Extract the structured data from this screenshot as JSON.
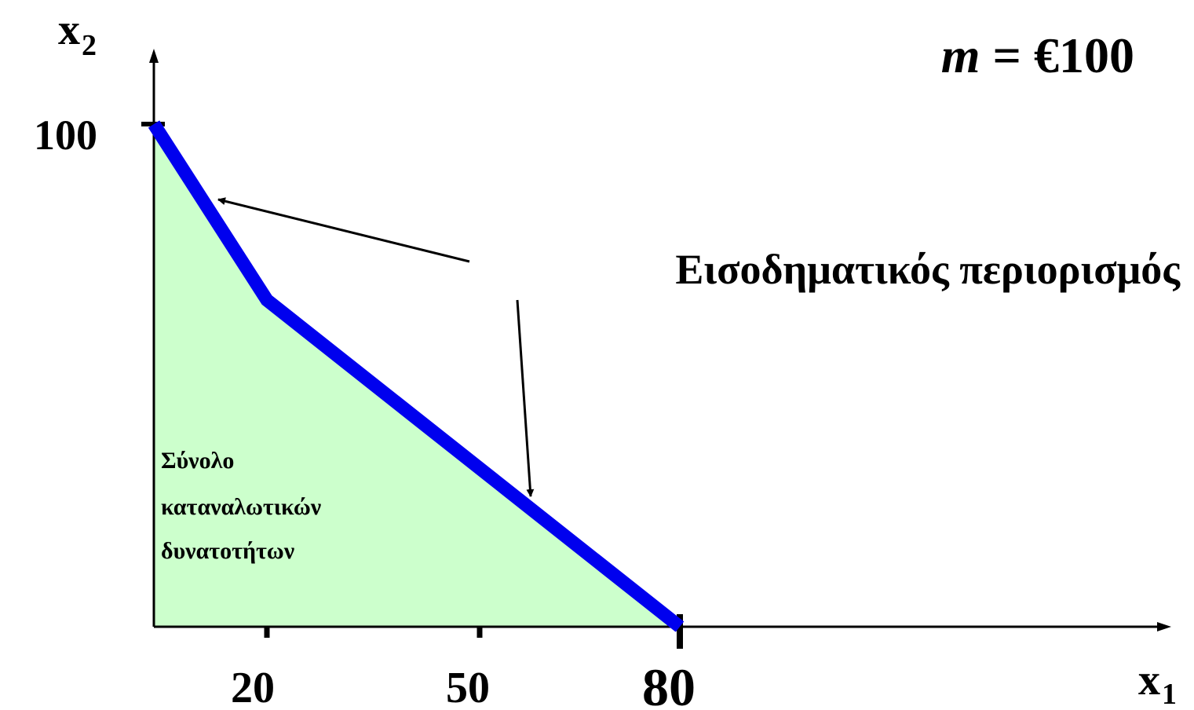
{
  "axes": {
    "y_label": "x",
    "y_label_sub": "2",
    "x_label": "x",
    "x_label_sub": "1",
    "y_tick": "100",
    "x_ticks": [
      "20",
      "50",
      "80"
    ]
  },
  "income": {
    "var": "m",
    "text": " = €100"
  },
  "budget_constraint_label": "Εισοδηματικός περιορισμός",
  "budget_set_label": [
    "Σύνολο",
    "καταναλωτικών",
    "δυνατοτήτων"
  ],
  "colors": {
    "budget_line": "#0000ee",
    "budget_set_fill": "#ccffcc",
    "budget_set_text": "#999900",
    "axis": "#000000"
  }
}
